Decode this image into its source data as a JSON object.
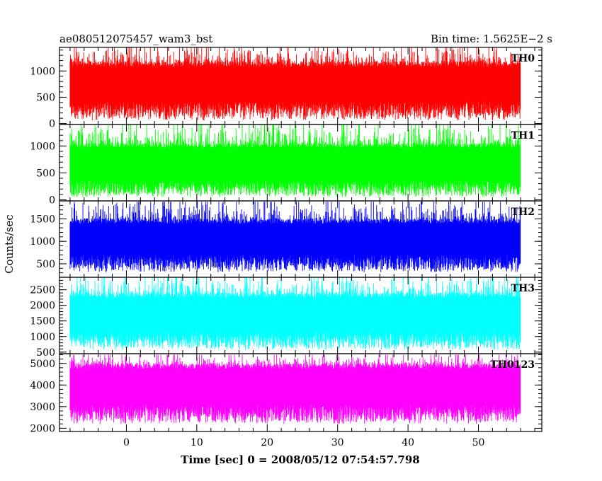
{
  "chart_data": {
    "type": "line",
    "title_left": "ae080512075457_wam3_bst",
    "title_right": "Bin time: 1.5625E−2 s",
    "xlabel": "Time [sec] 0 = 2008/05/12 07:54:57.798",
    "ylabel": "Counts/sec",
    "xlim": [
      -9.5,
      59
    ],
    "data_range": [
      -8,
      56
    ],
    "x_ticks": [
      0,
      10,
      20,
      30,
      40,
      50
    ],
    "x_tick_labels": [
      "0",
      "10",
      "20",
      "30",
      "40",
      "50"
    ],
    "panels": [
      {
        "name": "TH0",
        "color": "#ff0000",
        "ylim": [
          -20,
          1450
        ],
        "yticks": [
          0,
          500,
          1000
        ],
        "ytick_labels": [
          "0",
          "500",
          "1000"
        ],
        "low": 140,
        "high": 1180,
        "spike": 1450
      },
      {
        "name": "TH1",
        "color": "#00ff00",
        "ylim": [
          -20,
          1400
        ],
        "yticks": [
          0,
          500,
          1000
        ],
        "ytick_labels": [
          "0",
          "500",
          "1000"
        ],
        "low": 120,
        "high": 1050,
        "spike": 1400
      },
      {
        "name": "TH2",
        "color": "#0000ff",
        "ylim": [
          200,
          1900
        ],
        "yticks": [
          500,
          1000,
          1500
        ],
        "ytick_labels": [
          "500",
          "1000",
          "1500"
        ],
        "low": 400,
        "high": 1500,
        "spike": 1880
      },
      {
        "name": "TH3",
        "color": "#00ffff",
        "ylim": [
          450,
          2900
        ],
        "yticks": [
          500,
          1000,
          1500,
          2000,
          2500
        ],
        "ytick_labels": [
          "500",
          "1000",
          "1500",
          "2000",
          "2500"
        ],
        "low": 700,
        "high": 2400,
        "spike": 2900
      },
      {
        "name": "TH0123",
        "color": "#ff00ff",
        "ylim": [
          1850,
          5450
        ],
        "yticks": [
          2000,
          3000,
          4000,
          5000
        ],
        "ytick_labels": [
          "2000",
          "3000",
          "4000",
          "5000"
        ],
        "low": 2400,
        "high": 5000,
        "spike": 5400
      }
    ]
  }
}
